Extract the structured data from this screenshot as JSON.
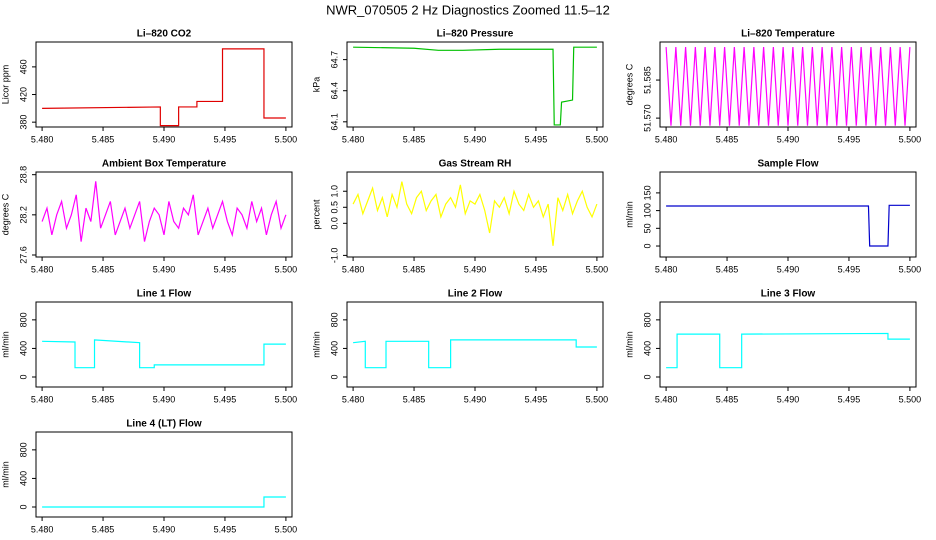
{
  "title": "NWR_070505  2 Hz Diagnostics Zoomed 11.5–12",
  "chart_data": [
    {
      "type": "line",
      "title": "Li–820 CO2",
      "y_label": "Licor ppm",
      "x": [
        5.48,
        5.4897,
        5.4897,
        5.4912,
        5.4912,
        5.4927,
        5.4927,
        5.4948,
        5.4948,
        5.4982,
        5.4982,
        5.5
      ],
      "series": [
        {
          "color": "#e00000",
          "values": [
            400,
            402,
            375,
            375,
            402,
            402,
            410,
            410,
            486,
            486,
            386,
            386
          ]
        }
      ],
      "xlim": [
        5.4795,
        5.5005
      ],
      "xticks": [
        {
          "value": 5.48,
          "label": "5.480"
        },
        {
          "value": 5.485,
          "label": "5.485"
        },
        {
          "value": 5.49,
          "label": "5.490"
        },
        {
          "value": 5.495,
          "label": "5.495"
        },
        {
          "value": 5.5,
          "label": "5.500"
        }
      ],
      "ylim": [
        373,
        496
      ],
      "yticks": [
        380,
        420,
        460
      ]
    },
    {
      "type": "line",
      "title": "Li–820 Pressure",
      "y_label": "kPa",
      "x": [
        5.48,
        5.485,
        5.487,
        5.489,
        5.492,
        5.4964,
        5.4965,
        5.497,
        5.4971,
        5.498,
        5.4981,
        5.5
      ],
      "series": [
        {
          "color": "#00c000",
          "values": [
            64.82,
            64.81,
            64.79,
            64.79,
            64.8,
            64.8,
            64.07,
            64.07,
            64.29,
            64.31,
            64.82,
            64.82
          ]
        }
      ],
      "xlim": [
        5.4795,
        5.5005
      ],
      "xticks": [
        {
          "value": 5.48,
          "label": "5.480"
        },
        {
          "value": 5.485,
          "label": "5.485"
        },
        {
          "value": 5.49,
          "label": "5.490"
        },
        {
          "value": 5.495,
          "label": "5.495"
        },
        {
          "value": 5.5,
          "label": "5.500"
        }
      ],
      "ylim": [
        64.05,
        64.87
      ],
      "yticks": [
        64.1,
        64.4,
        64.7
      ]
    },
    {
      "type": "line",
      "title": "Li–820 Temperature",
      "y_label": "degrees C",
      "x": [
        5.48,
        5.4804,
        5.4808,
        5.4812,
        5.4816,
        5.482,
        5.4824,
        5.4828,
        5.4832,
        5.4836,
        5.484,
        5.4844,
        5.4848,
        5.4852,
        5.4856,
        5.486,
        5.4864,
        5.4868,
        5.4872,
        5.4876,
        5.488,
        5.4884,
        5.4888,
        5.4892,
        5.4896,
        5.49,
        5.4904,
        5.4908,
        5.4912,
        5.4916,
        5.492,
        5.4924,
        5.4928,
        5.4932,
        5.4936,
        5.494,
        5.4944,
        5.4948,
        5.4952,
        5.4956,
        5.496,
        5.4964,
        5.4968,
        5.4972,
        5.4976,
        5.498,
        5.4984,
        5.4988,
        5.4992,
        5.4996,
        5.5
      ],
      "series": [
        {
          "color": "#ff00ff",
          "values": [
            51.598,
            51.567,
            51.598,
            51.567,
            51.598,
            51.567,
            51.598,
            51.567,
            51.598,
            51.567,
            51.598,
            51.567,
            51.598,
            51.567,
            51.598,
            51.567,
            51.598,
            51.567,
            51.598,
            51.567,
            51.598,
            51.567,
            51.598,
            51.567,
            51.598,
            51.567,
            51.598,
            51.567,
            51.598,
            51.567,
            51.598,
            51.567,
            51.598,
            51.567,
            51.598,
            51.567,
            51.598,
            51.567,
            51.598,
            51.567,
            51.598,
            51.567,
            51.598,
            51.567,
            51.598,
            51.567,
            51.598,
            51.567,
            51.598,
            51.567,
            51.598
          ]
        }
      ],
      "xlim": [
        5.4795,
        5.5005
      ],
      "xticks": [
        {
          "value": 5.48,
          "label": "5.480"
        },
        {
          "value": 5.485,
          "label": "5.485"
        },
        {
          "value": 5.49,
          "label": "5.490"
        },
        {
          "value": 5.495,
          "label": "5.495"
        },
        {
          "value": 5.5,
          "label": "5.500"
        }
      ],
      "ylim": [
        51.5665,
        51.6
      ],
      "yticks": [
        {
          "value": 51.57,
          "label": "51.570"
        },
        {
          "value": 51.585,
          "label": "51.585"
        }
      ]
    },
    {
      "type": "line",
      "title": "Ambient Box Temperature",
      "y_label": "degrees C",
      "x": [
        5.48,
        5.4804,
        5.4808,
        5.4812,
        5.4816,
        5.482,
        5.4824,
        5.4828,
        5.4832,
        5.4836,
        5.484,
        5.4844,
        5.4848,
        5.4852,
        5.4856,
        5.486,
        5.4864,
        5.4868,
        5.4872,
        5.4876,
        5.488,
        5.4884,
        5.4888,
        5.4892,
        5.4896,
        5.49,
        5.4904,
        5.4908,
        5.4912,
        5.4916,
        5.492,
        5.4924,
        5.4928,
        5.4932,
        5.4936,
        5.494,
        5.4944,
        5.4948,
        5.4952,
        5.4956,
        5.496,
        5.4964,
        5.4968,
        5.4972,
        5.4976,
        5.498,
        5.4984,
        5.4988,
        5.4992,
        5.4996,
        5.5
      ],
      "series": [
        {
          "color": "#ff00ff",
          "values": [
            28.1,
            28.3,
            27.9,
            28.2,
            28.4,
            28.0,
            28.2,
            28.5,
            27.8,
            28.3,
            28.1,
            28.7,
            28.0,
            28.2,
            28.4,
            27.9,
            28.1,
            28.3,
            28.0,
            28.2,
            28.4,
            27.8,
            28.1,
            28.3,
            28.2,
            27.9,
            28.4,
            28.1,
            28.0,
            28.3,
            28.2,
            28.5,
            27.9,
            28.1,
            28.3,
            28.0,
            28.2,
            28.4,
            28.1,
            27.9,
            28.3,
            28.2,
            28.0,
            28.4,
            28.1,
            28.3,
            27.9,
            28.2,
            28.4,
            28.0,
            28.2
          ]
        }
      ],
      "xlim": [
        5.4795,
        5.5005
      ],
      "xticks": [
        {
          "value": 5.48,
          "label": "5.480"
        },
        {
          "value": 5.485,
          "label": "5.485"
        },
        {
          "value": 5.49,
          "label": "5.490"
        },
        {
          "value": 5.495,
          "label": "5.495"
        },
        {
          "value": 5.5,
          "label": "5.500"
        }
      ],
      "ylim": [
        27.57,
        28.84
      ],
      "yticks": [
        27.6,
        28.2,
        28.8
      ]
    },
    {
      "type": "line",
      "title": "Gas Stream RH",
      "y_label": "percent",
      "x": [
        5.48,
        5.4804,
        5.4808,
        5.4812,
        5.4816,
        5.482,
        5.4824,
        5.4828,
        5.4832,
        5.4836,
        5.484,
        5.4844,
        5.4848,
        5.4852,
        5.4856,
        5.486,
        5.4864,
        5.4868,
        5.4872,
        5.4876,
        5.488,
        5.4884,
        5.4888,
        5.4892,
        5.4896,
        5.49,
        5.4904,
        5.4908,
        5.4912,
        5.4916,
        5.492,
        5.4924,
        5.4928,
        5.4932,
        5.4936,
        5.494,
        5.4944,
        5.4948,
        5.4952,
        5.4956,
        5.496,
        5.4964,
        5.4968,
        5.4972,
        5.4976,
        5.498,
        5.4984,
        5.4988,
        5.4992,
        5.4996,
        5.5
      ],
      "series": [
        {
          "color": "#ffff00",
          "values": [
            0.6,
            0.9,
            0.3,
            0.7,
            1.1,
            0.4,
            0.8,
            0.2,
            0.9,
            0.5,
            1.3,
            0.6,
            0.3,
            0.8,
            1.0,
            0.4,
            0.7,
            0.9,
            0.2,
            0.6,
            0.8,
            0.5,
            1.2,
            0.3,
            0.7,
            0.6,
            0.9,
            0.4,
            -0.3,
            0.7,
            0.5,
            0.8,
            0.3,
            1.0,
            0.6,
            0.4,
            0.9,
            0.5,
            0.7,
            0.2,
            0.6,
            -0.7,
            0.8,
            0.4,
            0.9,
            0.3,
            0.7,
            1.0,
            0.5,
            0.2,
            0.6
          ]
        }
      ],
      "xlim": [
        5.4795,
        5.5005
      ],
      "xticks": [
        {
          "value": 5.48,
          "label": "5.480"
        },
        {
          "value": 5.485,
          "label": "5.485"
        },
        {
          "value": 5.49,
          "label": "5.490"
        },
        {
          "value": 5.495,
          "label": "5.495"
        },
        {
          "value": 5.5,
          "label": "5.500"
        }
      ],
      "ylim": [
        -1.05,
        1.6
      ],
      "yticks": [
        {
          "value": -1,
          "label": "-1.0"
        },
        {
          "value": 0,
          "label": "0.0"
        },
        0.5,
        {
          "value": 1,
          "label": "1.0"
        }
      ]
    },
    {
      "type": "line",
      "title": "Sample Flow",
      "y_label": "ml/min",
      "x": [
        5.48,
        5.4966,
        5.4967,
        5.4982,
        5.4983,
        5.5
      ],
      "series": [
        {
          "color": "#0000cc",
          "values": [
            113,
            113,
            0,
            0,
            115,
            115
          ]
        }
      ],
      "xlim": [
        5.4795,
        5.5005
      ],
      "xticks": [
        {
          "value": 5.48,
          "label": "5.480"
        },
        {
          "value": 5.485,
          "label": "5.485"
        },
        {
          "value": 5.49,
          "label": "5.490"
        },
        {
          "value": 5.495,
          "label": "5.495"
        },
        {
          "value": 5.5,
          "label": "5.500"
        }
      ],
      "ylim": [
        -31,
        209
      ],
      "yticks": [
        0,
        50,
        100,
        150
      ]
    },
    {
      "type": "line",
      "title": "Line 1 Flow",
      "y_label": "ml/min",
      "x": [
        5.48,
        5.4827,
        5.4827,
        5.4843,
        5.4843,
        5.488,
        5.488,
        5.4892,
        5.4892,
        5.4982,
        5.4982,
        5.5
      ],
      "series": [
        {
          "color": "#00ffff",
          "values": [
            500,
            490,
            130,
            130,
            520,
            480,
            130,
            130,
            170,
            170,
            460,
            460
          ]
        }
      ],
      "xlim": [
        5.4795,
        5.5005
      ],
      "xticks": [
        {
          "value": 5.48,
          "label": "5.480"
        },
        {
          "value": 5.485,
          "label": "5.485"
        },
        {
          "value": 5.49,
          "label": "5.490"
        },
        {
          "value": 5.495,
          "label": "5.495"
        },
        {
          "value": 5.5,
          "label": "5.500"
        }
      ],
      "ylim": [
        -140,
        1050
      ],
      "yticks": [
        0,
        400,
        800
      ]
    },
    {
      "type": "line",
      "title": "Line 2 Flow",
      "y_label": "ml/min",
      "x": [
        5.48,
        5.481,
        5.481,
        5.4827,
        5.4827,
        5.4862,
        5.4862,
        5.488,
        5.488,
        5.4983,
        5.4983,
        5.5
      ],
      "series": [
        {
          "color": "#00ffff",
          "values": [
            480,
            500,
            130,
            130,
            500,
            500,
            130,
            130,
            520,
            520,
            420,
            420
          ]
        }
      ],
      "xlim": [
        5.4795,
        5.5005
      ],
      "xticks": [
        {
          "value": 5.48,
          "label": "5.480"
        },
        {
          "value": 5.485,
          "label": "5.485"
        },
        {
          "value": 5.49,
          "label": "5.490"
        },
        {
          "value": 5.495,
          "label": "5.495"
        },
        {
          "value": 5.5,
          "label": "5.500"
        }
      ],
      "ylim": [
        -140,
        1050
      ],
      "yticks": [
        0,
        400,
        800
      ]
    },
    {
      "type": "line",
      "title": "Line 3 Flow",
      "y_label": "ml/min",
      "x": [
        5.48,
        5.4809,
        5.4809,
        5.4844,
        5.4844,
        5.4862,
        5.4862,
        5.4982,
        5.4982,
        5.5
      ],
      "series": [
        {
          "color": "#00ffff",
          "values": [
            130,
            130,
            600,
            600,
            130,
            130,
            600,
            610,
            530,
            530
          ]
        }
      ],
      "xlim": [
        5.4795,
        5.5005
      ],
      "xticks": [
        {
          "value": 5.48,
          "label": "5.480"
        },
        {
          "value": 5.485,
          "label": "5.485"
        },
        {
          "value": 5.49,
          "label": "5.490"
        },
        {
          "value": 5.495,
          "label": "5.495"
        },
        {
          "value": 5.5,
          "label": "5.500"
        }
      ],
      "ylim": [
        -140,
        1050
      ],
      "yticks": [
        0,
        400,
        800
      ]
    },
    {
      "type": "line",
      "title": "Line 4 (LT) Flow",
      "y_label": "ml/min",
      "x": [
        5.48,
        5.4982,
        5.4982,
        5.5
      ],
      "series": [
        {
          "color": "#00ffff",
          "values": [
            0,
            0,
            140,
            140
          ]
        }
      ],
      "xlim": [
        5.4795,
        5.5005
      ],
      "xticks": [
        {
          "value": 5.48,
          "label": "5.480"
        },
        {
          "value": 5.485,
          "label": "5.485"
        },
        {
          "value": 5.49,
          "label": "5.490"
        },
        {
          "value": 5.495,
          "label": "5.495"
        },
        {
          "value": 5.5,
          "label": "5.500"
        }
      ],
      "ylim": [
        -140,
        1050
      ],
      "yticks": [
        0,
        400,
        800
      ]
    }
  ]
}
